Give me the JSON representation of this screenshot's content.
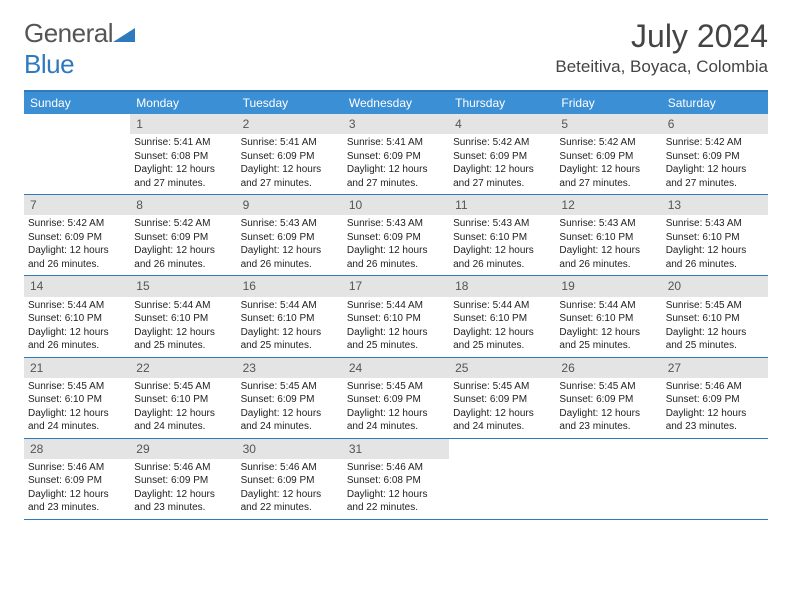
{
  "logo": {
    "text_gray": "General",
    "text_blue": "Blue"
  },
  "title": "July 2024",
  "location": "Beteitiva, Boyaca, Colombia",
  "colors": {
    "header_bar": "#3b8fd4",
    "border": "#2f7abf",
    "daynum_bg": "#e4e4e4",
    "text": "#333333",
    "logo_gray": "#555555",
    "logo_blue": "#2f7abf"
  },
  "weekdays": [
    "Sunday",
    "Monday",
    "Tuesday",
    "Wednesday",
    "Thursday",
    "Friday",
    "Saturday"
  ],
  "weeks": [
    [
      null,
      {
        "n": "1",
        "sr": "Sunrise: 5:41 AM",
        "ss": "Sunset: 6:08 PM",
        "dl": "Daylight: 12 hours and 27 minutes."
      },
      {
        "n": "2",
        "sr": "Sunrise: 5:41 AM",
        "ss": "Sunset: 6:09 PM",
        "dl": "Daylight: 12 hours and 27 minutes."
      },
      {
        "n": "3",
        "sr": "Sunrise: 5:41 AM",
        "ss": "Sunset: 6:09 PM",
        "dl": "Daylight: 12 hours and 27 minutes."
      },
      {
        "n": "4",
        "sr": "Sunrise: 5:42 AM",
        "ss": "Sunset: 6:09 PM",
        "dl": "Daylight: 12 hours and 27 minutes."
      },
      {
        "n": "5",
        "sr": "Sunrise: 5:42 AM",
        "ss": "Sunset: 6:09 PM",
        "dl": "Daylight: 12 hours and 27 minutes."
      },
      {
        "n": "6",
        "sr": "Sunrise: 5:42 AM",
        "ss": "Sunset: 6:09 PM",
        "dl": "Daylight: 12 hours and 27 minutes."
      }
    ],
    [
      {
        "n": "7",
        "sr": "Sunrise: 5:42 AM",
        "ss": "Sunset: 6:09 PM",
        "dl": "Daylight: 12 hours and 26 minutes."
      },
      {
        "n": "8",
        "sr": "Sunrise: 5:42 AM",
        "ss": "Sunset: 6:09 PM",
        "dl": "Daylight: 12 hours and 26 minutes."
      },
      {
        "n": "9",
        "sr": "Sunrise: 5:43 AM",
        "ss": "Sunset: 6:09 PM",
        "dl": "Daylight: 12 hours and 26 minutes."
      },
      {
        "n": "10",
        "sr": "Sunrise: 5:43 AM",
        "ss": "Sunset: 6:09 PM",
        "dl": "Daylight: 12 hours and 26 minutes."
      },
      {
        "n": "11",
        "sr": "Sunrise: 5:43 AM",
        "ss": "Sunset: 6:10 PM",
        "dl": "Daylight: 12 hours and 26 minutes."
      },
      {
        "n": "12",
        "sr": "Sunrise: 5:43 AM",
        "ss": "Sunset: 6:10 PM",
        "dl": "Daylight: 12 hours and 26 minutes."
      },
      {
        "n": "13",
        "sr": "Sunrise: 5:43 AM",
        "ss": "Sunset: 6:10 PM",
        "dl": "Daylight: 12 hours and 26 minutes."
      }
    ],
    [
      {
        "n": "14",
        "sr": "Sunrise: 5:44 AM",
        "ss": "Sunset: 6:10 PM",
        "dl": "Daylight: 12 hours and 26 minutes."
      },
      {
        "n": "15",
        "sr": "Sunrise: 5:44 AM",
        "ss": "Sunset: 6:10 PM",
        "dl": "Daylight: 12 hours and 25 minutes."
      },
      {
        "n": "16",
        "sr": "Sunrise: 5:44 AM",
        "ss": "Sunset: 6:10 PM",
        "dl": "Daylight: 12 hours and 25 minutes."
      },
      {
        "n": "17",
        "sr": "Sunrise: 5:44 AM",
        "ss": "Sunset: 6:10 PM",
        "dl": "Daylight: 12 hours and 25 minutes."
      },
      {
        "n": "18",
        "sr": "Sunrise: 5:44 AM",
        "ss": "Sunset: 6:10 PM",
        "dl": "Daylight: 12 hours and 25 minutes."
      },
      {
        "n": "19",
        "sr": "Sunrise: 5:44 AM",
        "ss": "Sunset: 6:10 PM",
        "dl": "Daylight: 12 hours and 25 minutes."
      },
      {
        "n": "20",
        "sr": "Sunrise: 5:45 AM",
        "ss": "Sunset: 6:10 PM",
        "dl": "Daylight: 12 hours and 25 minutes."
      }
    ],
    [
      {
        "n": "21",
        "sr": "Sunrise: 5:45 AM",
        "ss": "Sunset: 6:10 PM",
        "dl": "Daylight: 12 hours and 24 minutes."
      },
      {
        "n": "22",
        "sr": "Sunrise: 5:45 AM",
        "ss": "Sunset: 6:10 PM",
        "dl": "Daylight: 12 hours and 24 minutes."
      },
      {
        "n": "23",
        "sr": "Sunrise: 5:45 AM",
        "ss": "Sunset: 6:09 PM",
        "dl": "Daylight: 12 hours and 24 minutes."
      },
      {
        "n": "24",
        "sr": "Sunrise: 5:45 AM",
        "ss": "Sunset: 6:09 PM",
        "dl": "Daylight: 12 hours and 24 minutes."
      },
      {
        "n": "25",
        "sr": "Sunrise: 5:45 AM",
        "ss": "Sunset: 6:09 PM",
        "dl": "Daylight: 12 hours and 24 minutes."
      },
      {
        "n": "26",
        "sr": "Sunrise: 5:45 AM",
        "ss": "Sunset: 6:09 PM",
        "dl": "Daylight: 12 hours and 23 minutes."
      },
      {
        "n": "27",
        "sr": "Sunrise: 5:46 AM",
        "ss": "Sunset: 6:09 PM",
        "dl": "Daylight: 12 hours and 23 minutes."
      }
    ],
    [
      {
        "n": "28",
        "sr": "Sunrise: 5:46 AM",
        "ss": "Sunset: 6:09 PM",
        "dl": "Daylight: 12 hours and 23 minutes."
      },
      {
        "n": "29",
        "sr": "Sunrise: 5:46 AM",
        "ss": "Sunset: 6:09 PM",
        "dl": "Daylight: 12 hours and 23 minutes."
      },
      {
        "n": "30",
        "sr": "Sunrise: 5:46 AM",
        "ss": "Sunset: 6:09 PM",
        "dl": "Daylight: 12 hours and 22 minutes."
      },
      {
        "n": "31",
        "sr": "Sunrise: 5:46 AM",
        "ss": "Sunset: 6:08 PM",
        "dl": "Daylight: 12 hours and 22 minutes."
      },
      null,
      null,
      null
    ]
  ]
}
